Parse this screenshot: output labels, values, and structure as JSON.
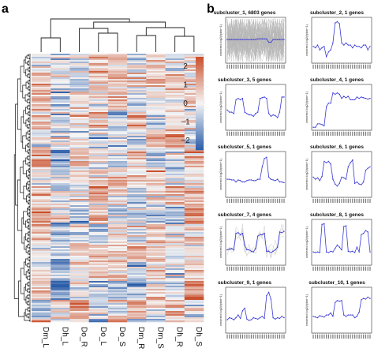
{
  "panel_a": {
    "label": "a",
    "columns": [
      "Dm_L",
      "Dh_L",
      "Do_R",
      "Do_L",
      "Do_S",
      "Dm_R",
      "Dm_S",
      "Dh_R",
      "Dh_S"
    ],
    "colorbar": {
      "ticks": [
        "2",
        "1",
        "0",
        "−1",
        "−2"
      ],
      "low_color": "#2a5ca8",
      "mid_color": "#f5f5f5",
      "high_color": "#c94f2b"
    }
  },
  "panel_b": {
    "label": "b",
    "ylabel": "centered log2(fpkm+1)",
    "x_tick_count": 27,
    "line_color": "#3a3ad6",
    "bg_line_color": "#b8b8b8"
  },
  "chart_data": [
    {
      "type": "heatmap",
      "columns": [
        "Dm_L",
        "Dh_L",
        "Do_R",
        "Do_L",
        "Do_S",
        "Dm_R",
        "Dm_S",
        "Dh_R",
        "Dh_S"
      ],
      "color_range": [
        -2.5,
        2.5
      ],
      "colorbar_ticks": [
        2,
        1,
        0,
        -1,
        -2
      ],
      "row_dendrogram": true,
      "column_dendrogram": true
    },
    {
      "type": "line",
      "ylabel": "centered log2(fpkm+1)",
      "subplots": [
        {
          "title": "subcluster_1, 6803 genes",
          "values": [
            0,
            0,
            0,
            0,
            0,
            0,
            0,
            0,
            0,
            0,
            0,
            0,
            0,
            0,
            0.1,
            0.1,
            0.1,
            0.1,
            0.1,
            -0.4,
            -0.4,
            0,
            0,
            0,
            0,
            0,
            0
          ],
          "background": true
        },
        {
          "title": "subcluster_2, 1 genes",
          "values": [
            -1,
            -1.2,
            -0.8,
            -1.5,
            -1.2,
            -1.0,
            -2.5,
            -1.8,
            -1.5,
            -0.5,
            2.4,
            2.6,
            2.3,
            -0.5,
            -0.8,
            -0.5,
            -0.8,
            -0.8,
            -1.2,
            -0.8,
            -1.0,
            -1.0,
            -1.2,
            -0.8,
            -0.8,
            -1.5,
            -1.0
          ]
        },
        {
          "title": "subcluster_3, 5 genes",
          "values": [
            -0.5,
            -0.8,
            -0.8,
            -1.0,
            1.0,
            1.2,
            1.0,
            1.2,
            -0.8,
            -1.0,
            -1.2,
            -1.2,
            -1.4,
            -1.0,
            -0.8,
            1.2,
            1.3,
            1.4,
            1.2,
            -1.0,
            -1.4,
            -1.2,
            -1.3,
            -1.6,
            -0.8,
            1.4,
            1.4
          ]
        },
        {
          "title": "subcluster_4, 1 genes",
          "values": [
            -3,
            -3,
            -2.5,
            -2.5,
            -2.6,
            -2.8,
            0,
            0.5,
            0.5,
            2,
            1.8,
            2.0,
            1.8,
            1.2,
            1.5,
            1.3,
            1.5,
            1.0,
            1.0,
            1.0,
            1.4,
            1.2,
            1.4,
            1.3,
            1.2,
            1.1,
            1.2
          ]
        },
        {
          "title": "subcluster_5, 1 genes",
          "values": [
            -0.8,
            -0.8,
            -0.9,
            -0.9,
            -1.2,
            -0.9,
            -1.0,
            -1.2,
            -1.2,
            -1.0,
            -0.9,
            -0.9,
            -1.0,
            -1.0,
            -0.8,
            -0.8,
            1.0,
            2.2,
            2.4,
            -0.5,
            -0.8,
            -0.9,
            -1.0,
            -0.8,
            -1.2,
            -1.2,
            -1.3
          ]
        },
        {
          "title": "subcluster_6, 1 genes",
          "values": [
            -0.5,
            -0.8,
            -0.6,
            -1.0,
            -0.4,
            1.8,
            1.6,
            1.8,
            1.4,
            -0.8,
            -1.5,
            -1.8,
            -1.4,
            -0.5,
            -0.6,
            -0.8,
            1.0,
            1.6,
            2.0,
            -1.4,
            -1.2,
            -1.5,
            -1.6,
            -1.2,
            0.5,
            0.8,
            1.0
          ]
        },
        {
          "title": "subcluster_7, 4 genes",
          "values": [
            -1.2,
            -1.1,
            -1.0,
            -1.2,
            1.2,
            1.3,
            1.0,
            1.2,
            -0.5,
            -1.2,
            -1.2,
            -1.4,
            -1.5,
            -1.0,
            0.8,
            1.0,
            1.0,
            1.2,
            -1.4,
            -1.4,
            -1.6,
            -1.4,
            -1.2,
            -0.8,
            1.4,
            1.3,
            1.5
          ],
          "background": true
        },
        {
          "title": "subcluster_8, 1 genes",
          "values": [
            -1.5,
            -1.6,
            -1.5,
            -1.6,
            2.5,
            2.6,
            -1.5,
            -1.6,
            -1.4,
            -1.5,
            -1.0,
            -0.5,
            -0.8,
            -1.2,
            2.2,
            2.3,
            -1.4,
            -1.5,
            -1.4,
            -1.6,
            -0.8,
            -1.5,
            1.0,
            1.2,
            1.6,
            1.4,
            -1.5
          ]
        },
        {
          "title": "subcluster_9, 1 genes",
          "values": [
            -1.5,
            -1.2,
            -1.3,
            -1.5,
            -1.2,
            -0.8,
            -1.3,
            -0.2,
            0.2,
            -1.4,
            -1.6,
            -1.5,
            -1.2,
            -1.3,
            -1.4,
            -1.2,
            -1.0,
            -1.3,
            2.0,
            2.5,
            1.5,
            -1.2,
            -1.4,
            -1.2,
            -1.3,
            -1.0,
            -1.2
          ]
        },
        {
          "title": "subcluster_10, 1 genes",
          "values": [
            -1.0,
            -1.1,
            -1.2,
            -0.9,
            -1.0,
            -1.1,
            -0.8,
            -0.8,
            -0.5,
            -1.0,
            1.0,
            1.3,
            1.2,
            1.3,
            -0.8,
            -1.0,
            -0.8,
            -0.8,
            -0.8,
            -1.2,
            -1.0,
            -0.4,
            1.4,
            1.6,
            1.5,
            1.8,
            1.6
          ]
        }
      ]
    }
  ]
}
